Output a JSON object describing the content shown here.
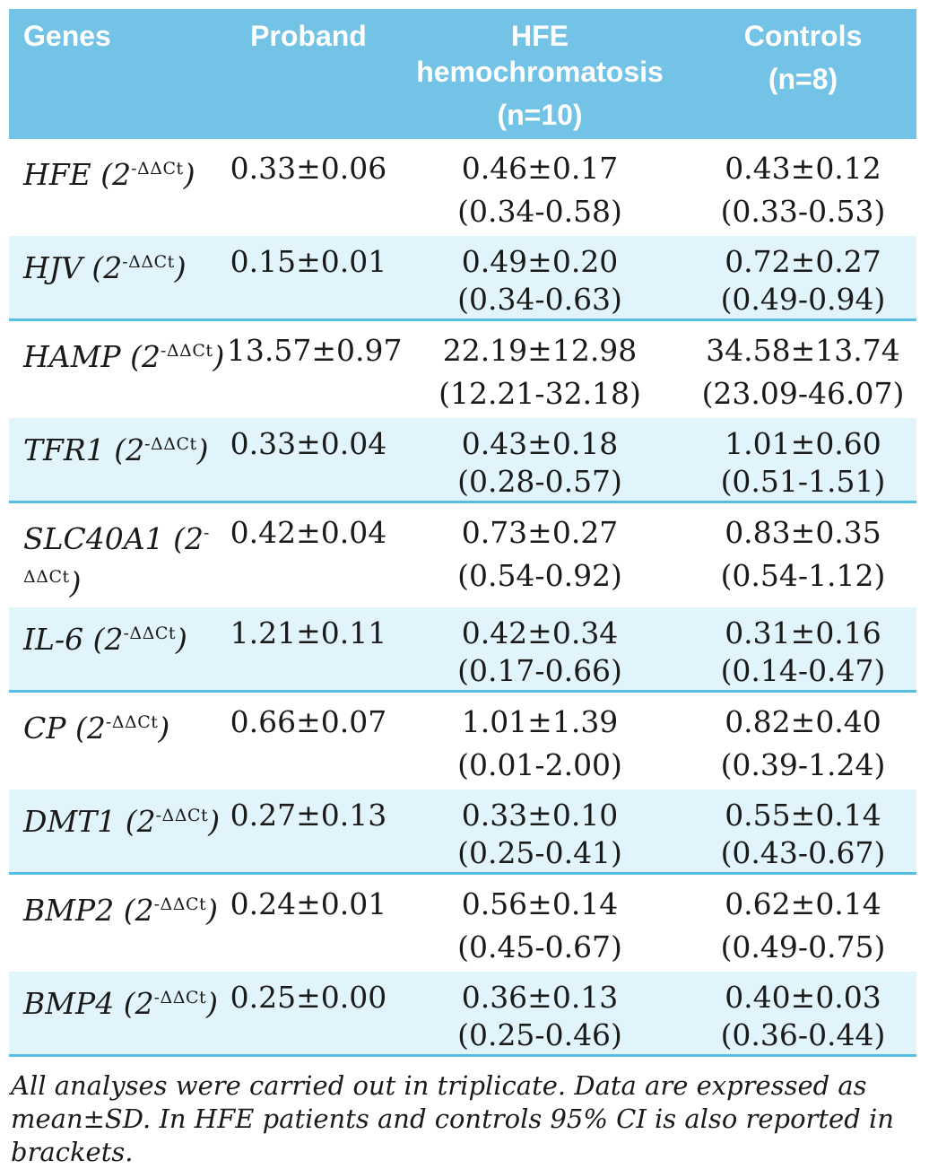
{
  "table": {
    "colors": {
      "header_bg": "#73C3E6",
      "stripe_bg": "#E1F4FB",
      "rule": "#57BEE3",
      "header_text": "#FFFFFF",
      "body_text": "#1A1A1A"
    },
    "columns": [
      {
        "label": "Genes",
        "sub": ""
      },
      {
        "label": "Proband",
        "sub": ""
      },
      {
        "label": "HFE hemochromatosis",
        "sub": "(n=10)"
      },
      {
        "label": "Controls",
        "sub": "(n=8)"
      }
    ],
    "gene_notation": {
      "open": "(2",
      "sup": "-ΔΔCt",
      "close": ")"
    },
    "rows": [
      {
        "gene": "HFE",
        "proband": "0.33±0.06",
        "hfe": {
          "mean": "0.46±0.17",
          "ci": "(0.34-0.58)"
        },
        "controls": {
          "mean": "0.43±0.12",
          "ci": "(0.33-0.53)"
        }
      },
      {
        "gene": "HJV",
        "proband": "0.15±0.01",
        "hfe": {
          "mean": "0.49±0.20",
          "ci": "(0.34-0.63)"
        },
        "controls": {
          "mean": "0.72±0.27",
          "ci": "(0.49-0.94)"
        }
      },
      {
        "gene": "HAMP",
        "proband": "13.57±0.97",
        "hfe": {
          "mean": "22.19±12.98",
          "ci": "(12.21-32.18)"
        },
        "controls": {
          "mean": "34.58±13.74",
          "ci": "(23.09-46.07)"
        }
      },
      {
        "gene": "TFR1",
        "proband": "0.33±0.04",
        "hfe": {
          "mean": "0.43±0.18",
          "ci": "(0.28-0.57)"
        },
        "controls": {
          "mean": "1.01±0.60",
          "ci": "(0.51-1.51)"
        }
      },
      {
        "gene": "SLC40A1",
        "proband": "0.42±0.04",
        "hfe": {
          "mean": "0.73±0.27",
          "ci": "(0.54-0.92)"
        },
        "controls": {
          "mean": "0.83±0.35",
          "ci": "(0.54-1.12)"
        }
      },
      {
        "gene": "IL-6",
        "proband": "1.21±0.11",
        "hfe": {
          "mean": "0.42±0.34",
          "ci": "(0.17-0.66)"
        },
        "controls": {
          "mean": "0.31±0.16",
          "ci": "(0.14-0.47)"
        }
      },
      {
        "gene": "CP",
        "proband": "0.66±0.07",
        "hfe": {
          "mean": "1.01±1.39",
          "ci": "(0.01-2.00)"
        },
        "controls": {
          "mean": "0.82±0.40",
          "ci": "(0.39-1.24)"
        }
      },
      {
        "gene": "DMT1",
        "proband": "0.27±0.13",
        "hfe": {
          "mean": "0.33±0.10",
          "ci": "(0.25-0.41)"
        },
        "controls": {
          "mean": "0.55±0.14",
          "ci": "(0.43-0.67)"
        }
      },
      {
        "gene": "BMP2",
        "proband": "0.24±0.01",
        "hfe": {
          "mean": "0.56±0.14",
          "ci": "(0.45-0.67)"
        },
        "controls": {
          "mean": "0.62±0.14",
          "ci": "(0.49-0.75)"
        }
      },
      {
        "gene": "BMP4",
        "proband": "0.25±0.00",
        "hfe": {
          "mean": "0.36±0.13",
          "ci": "(0.25-0.46)"
        },
        "controls": {
          "mean": "0.40±0.03",
          "ci": "(0.36-0.44)"
        }
      }
    ],
    "footnote": "All analyses were carried out in triplicate. Data are expressed as mean±SD. In HFE patients and controls 95% CI is also reported in brackets."
  }
}
